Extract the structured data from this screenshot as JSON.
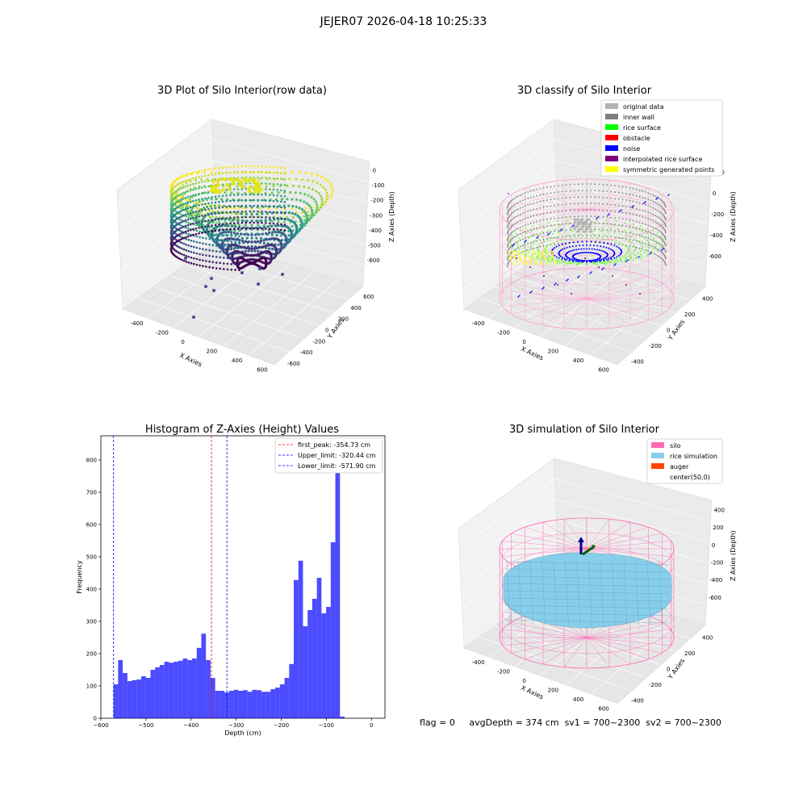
{
  "suptitle": "JEJER07 2026-04-18 10:25:33",
  "panels": {
    "raw": {
      "title": "3D Plot of Silo Interior(row data)",
      "xlabel": "X Axies",
      "ylabel": "Y Axies",
      "zlabel": "Z Axies (Depth)",
      "xticks": [
        "-400",
        "-200",
        "0",
        "200",
        "400",
        "600"
      ],
      "yticks": [
        "600",
        "400",
        "200",
        "0",
        "-200",
        "-400",
        "-600"
      ],
      "zticks": [
        "0",
        "-100",
        "-200",
        "-300",
        "-400",
        "-500",
        "-600"
      ]
    },
    "classify": {
      "title": "3D classify of Silo Interior",
      "xlabel": "X Axies",
      "ylabel": "Y Axies",
      "zlabel": "Z Axies (Depth)",
      "xticks": [
        "-400",
        "-200",
        "0",
        "200",
        "400",
        "600"
      ],
      "yticks": [
        "400",
        "200",
        "0",
        "-200",
        "-400"
      ],
      "zticks": [
        "200",
        "0",
        "-200",
        "-400",
        "-600"
      ],
      "legend": [
        {
          "label": "original data",
          "color": "#b3b3b3"
        },
        {
          "label": "inner wall",
          "color": "#808080"
        },
        {
          "label": "rice surface",
          "color": "#00ff00"
        },
        {
          "label": "obstacle",
          "color": "#ff0000"
        },
        {
          "label": "noise",
          "color": "#0000ff"
        },
        {
          "label": "interpolated rice surface",
          "color": "#800080"
        },
        {
          "label": "symmetric generated points",
          "color": "#ffff00"
        }
      ]
    },
    "simulation": {
      "title": "3D simulation of Silo Interior",
      "xlabel": "X Axies",
      "ylabel": "Y Axies",
      "zlabel": "Z Axies (Depth)",
      "xticks": [
        "-400",
        "-200",
        "0",
        "200",
        "400",
        "600"
      ],
      "yticks": [
        "400",
        "200",
        "0",
        "-200",
        "-400"
      ],
      "zticks": [
        "400",
        "200",
        "0",
        "-200",
        "-400",
        "-600"
      ],
      "legend": [
        {
          "label": "silo",
          "color": "#ff69b4"
        },
        {
          "label": "rice simulation",
          "color": "#87ceeb"
        },
        {
          "label": "auger",
          "color": "#ff4500"
        },
        {
          "label": "center(50,0)",
          "color": ""
        }
      ]
    }
  },
  "chart_data": {
    "type": "bar",
    "title": "Histogram of Z-Axies (Height) Values",
    "xlabel": "Depth (cm)",
    "ylabel": "Frequency",
    "xlim": [
      -600,
      30
    ],
    "ylim": [
      0,
      875
    ],
    "xticks": [
      -600,
      -500,
      -400,
      -300,
      -200,
      -100,
      0
    ],
    "yticks": [
      0,
      100,
      200,
      300,
      400,
      500,
      600,
      700,
      800
    ],
    "bin_start": -572,
    "bin_width": 10.25,
    "values": [
      105,
      180,
      140,
      115,
      118,
      120,
      130,
      125,
      150,
      158,
      165,
      175,
      172,
      175,
      178,
      185,
      180,
      185,
      218,
      262,
      180,
      125,
      85,
      85,
      80,
      85,
      88,
      85,
      87,
      82,
      88,
      87,
      82,
      82,
      90,
      95,
      105,
      125,
      168,
      428,
      488,
      285,
      335,
      370,
      435,
      325,
      345,
      545,
      825,
      5
    ],
    "bar_color": "#0000ff",
    "annotations": [
      {
        "label": "first_peak: -354.73 cm",
        "x": -354.73,
        "color": "#ff0000"
      },
      {
        "label": "Upper_limit: -320.44 cm",
        "x": -320.44,
        "color": "#0000ff"
      },
      {
        "label": "Lower_limit: -571.90 cm",
        "x": -571.9,
        "color": "#0000ff"
      }
    ]
  },
  "footer": {
    "flag": "flag = 0",
    "avgDepth": "avgDepth = 374 cm",
    "sv1": "sv1 = 700~2300",
    "sv2": "sv2 = 700~2300"
  }
}
